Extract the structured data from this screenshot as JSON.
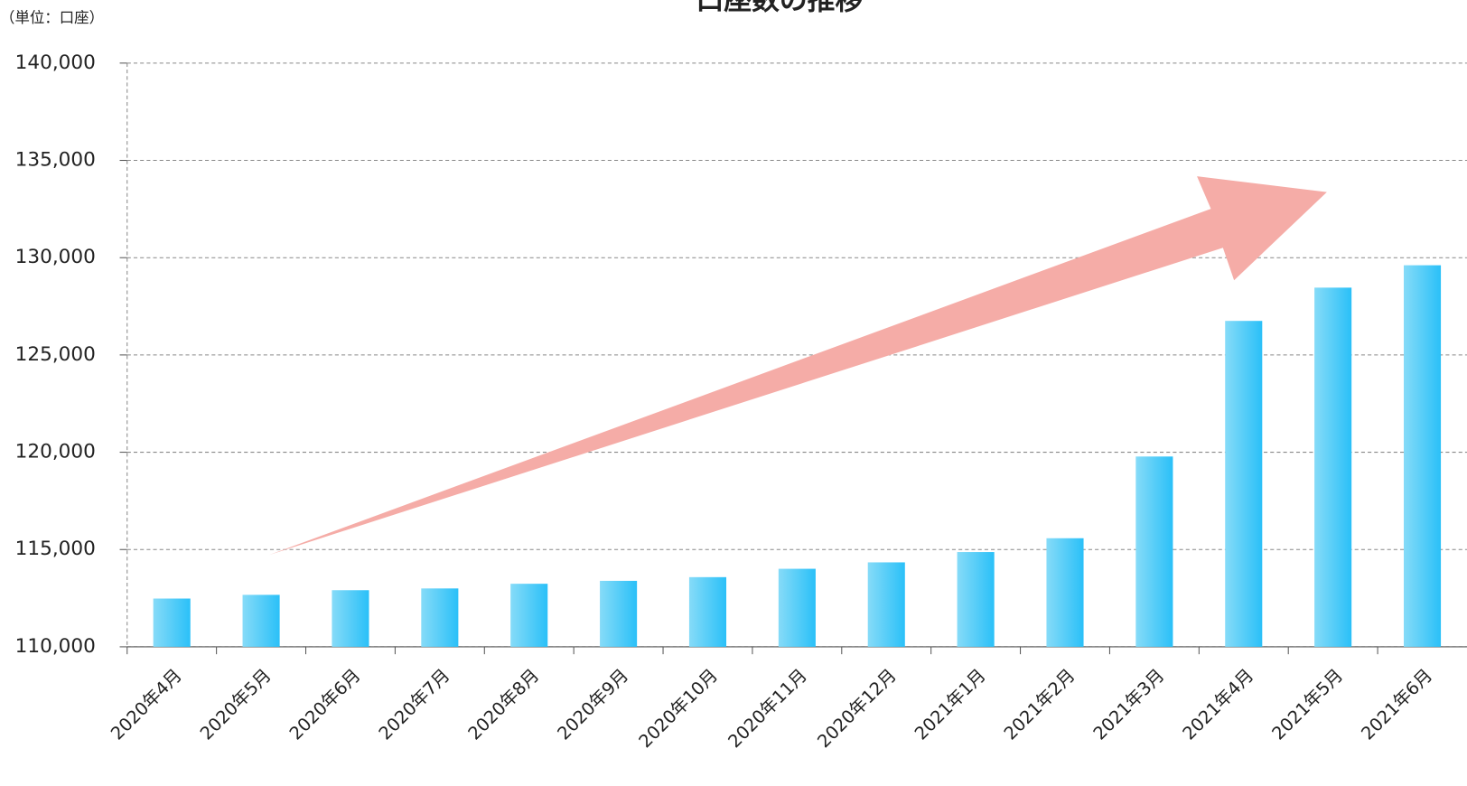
{
  "chart_data": {
    "type": "bar",
    "title": "口座数の推移",
    "unit_label": "（単位：口座）",
    "categories": [
      "2020年4月",
      "2020年5月",
      "2020年6月",
      "2020年7月",
      "2020年8月",
      "2020年9月",
      "2020年10月",
      "2020年11月",
      "2020年12月",
      "2021年1月",
      "2021年2月",
      "2021年3月",
      "2021年4月",
      "2021年5月",
      "2021年6月"
    ],
    "values": [
      112480,
      112670,
      112910,
      113000,
      113240,
      113390,
      113580,
      114010,
      114340,
      114870,
      115580,
      119780,
      126750,
      128460,
      129610
    ],
    "color": "#2ac0f8",
    "ylim": [
      110000,
      140000
    ],
    "yticks": [
      {
        "value": 110000,
        "label": "110,000"
      },
      {
        "value": 115000,
        "label": "115,000"
      },
      {
        "value": 120000,
        "label": "120,000"
      },
      {
        "value": 125000,
        "label": "125,000"
      },
      {
        "value": 130000,
        "label": "130,000"
      },
      {
        "value": 135000,
        "label": "135,000"
      },
      {
        "value": 140000,
        "label": "140,000"
      }
    ],
    "grid": true
  }
}
